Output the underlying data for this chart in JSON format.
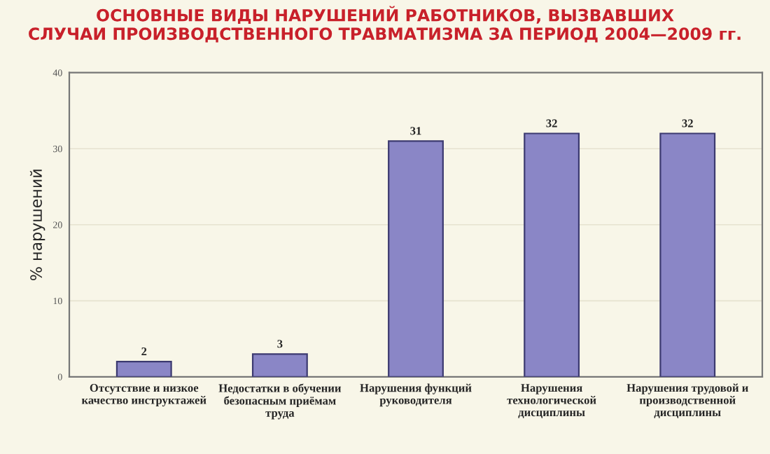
{
  "chart_data": {
    "type": "bar",
    "title": "ОСНОВНЫЕ ВИДЫ НАРУШЕНИЙ РАБОТНИКОВ, ВЫЗВАВШИХ\nСЛУЧАИ ПРОИЗВОДСТВЕННОГО ТРАВМАТИЗМА ЗА ПЕРИОД 2004—2009 гг.",
    "ylabel": "% нарушений",
    "categories": [
      "Отсутствие и низкое\nкачество инструктажей",
      "Недостатки в обучении\nбезопасным приёмам\nтруда",
      "Нарушения функций\nруководителя",
      "Нарушения\nтехнологической\nдисциплины",
      "Нарушения трудовой и\nпроизводственной\nдисциплины"
    ],
    "values": [
      2,
      3,
      31,
      32,
      32
    ],
    "color": "#8a86c6",
    "ylim": [
      0,
      40
    ],
    "yticks": [
      0,
      10,
      20,
      30,
      40
    ],
    "grid": "y",
    "data_labels": true
  }
}
